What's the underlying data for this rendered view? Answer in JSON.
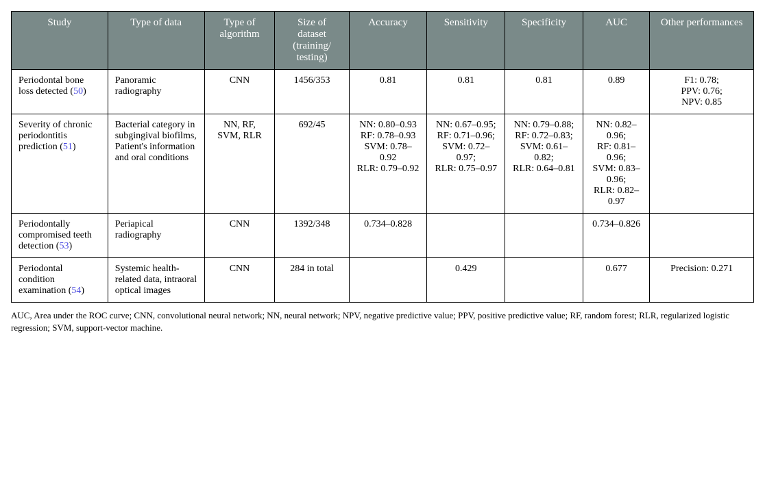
{
  "table": {
    "columns": [
      "Study",
      "Type of data",
      "Type of algorithm",
      "Size of dataset (training/ testing)",
      "Accuracy",
      "Sensitivity",
      "Specificity",
      "AUC",
      "Other performances"
    ],
    "column_widths_percent": [
      13,
      13,
      9.5,
      10,
      10.5,
      10.5,
      10.5,
      9,
      14
    ],
    "header_bg": "#7a8a89",
    "header_fg": "#ffffff",
    "border_color": "#000000",
    "ref_color": "#4a4ae0",
    "rows": [
      {
        "study_text": "Periodontal bone loss detected (",
        "study_ref": "50",
        "study_tail": ")",
        "type_of_data": "Panoramic radiography",
        "algorithm": "CNN",
        "dataset": "1456/353",
        "accuracy": "0.81",
        "sensitivity": "0.81",
        "specificity": "0.81",
        "auc": "0.89",
        "other": "F1: 0.78;\nPPV: 0.76;\nNPV: 0.85"
      },
      {
        "study_text": "Severity of chronic periodontitis prediction (",
        "study_ref": "51",
        "study_tail": ")",
        "type_of_data": "Bacterial category in subgingival biofilms, Patient's information and oral conditions",
        "algorithm": "NN, RF, SVM, RLR",
        "dataset": "692/45",
        "accuracy": "NN: 0.80–0.93\nRF: 0.78–0.93\nSVM: 0.78–0.92\nRLR: 0.79–0.92",
        "sensitivity": "NN: 0.67–0.95;\nRF: 0.71–0.96;\nSVM: 0.72–0.97;\nRLR: 0.75–0.97",
        "specificity": "NN: 0.79–0.88;\nRF: 0.72–0.83;\nSVM: 0.61–0.82;\nRLR: 0.64–0.81",
        "auc": "NN: 0.82–0.96;\nRF: 0.81–0.96;\nSVM: 0.83–0.96;\nRLR: 0.82–0.97",
        "other": ""
      },
      {
        "study_text": "Periodontally compromised teeth detection (",
        "study_ref": "53",
        "study_tail": ")",
        "type_of_data": "Periapical radiography",
        "algorithm": "CNN",
        "dataset": "1392/348",
        "accuracy": "0.734–0.828",
        "sensitivity": "",
        "specificity": "",
        "auc": "0.734–0.826",
        "other": ""
      },
      {
        "study_text": "Periodontal condition examination (",
        "study_ref": "54",
        "study_tail": ")",
        "type_of_data": "Systemic health-related data, intraoral optical images",
        "algorithm": "CNN",
        "dataset": "284 in total",
        "accuracy": "",
        "sensitivity": "0.429",
        "specificity": "",
        "auc": "0.677",
        "other": "Precision: 0.271"
      }
    ]
  },
  "footnote": "AUC, Area under the ROC curve; CNN, convolutional neural network; NN, neural network; NPV, negative predictive value; PPV, positive predictive value; RF, random forest; RLR, regularized logistic regression; SVM, support-vector machine."
}
